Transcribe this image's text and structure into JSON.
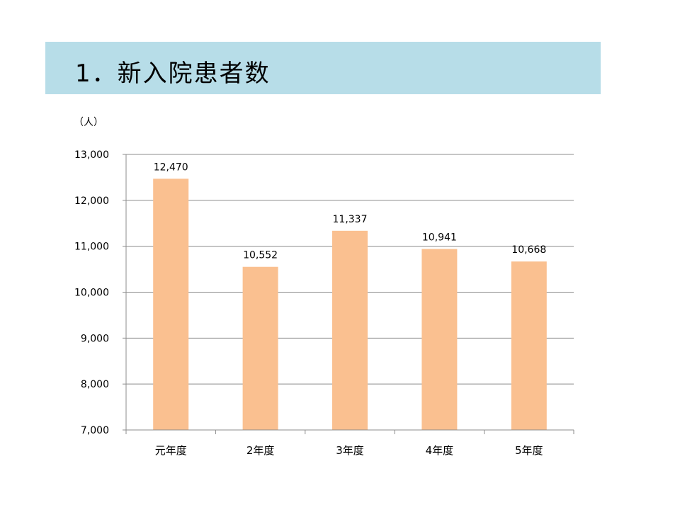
{
  "header": {
    "title": "1．新入院患者数"
  },
  "chart_data": {
    "type": "bar",
    "title": "",
    "xlabel": "",
    "ylabel": "（人）",
    "unit_label": "（人）",
    "categories": [
      "元年度",
      "2年度",
      "3年度",
      "4年度",
      "5年度"
    ],
    "values": [
      12470,
      10552,
      11337,
      10941,
      10668
    ],
    "value_labels": [
      "12,470",
      "10,552",
      "11,337",
      "10,941",
      "10,668"
    ],
    "ylim": [
      7000,
      13000
    ],
    "yticks": [
      7000,
      8000,
      9000,
      10000,
      11000,
      12000,
      13000
    ],
    "ytick_labels": [
      "7,000",
      "8,000",
      "9,000",
      "10,000",
      "11,000",
      "12,000",
      "13,000"
    ],
    "grid": true,
    "legend": "none",
    "bar_color": "#fac090",
    "grid_color": "#8c8c8c"
  },
  "colors": {
    "title_band": "#b7dde8"
  }
}
